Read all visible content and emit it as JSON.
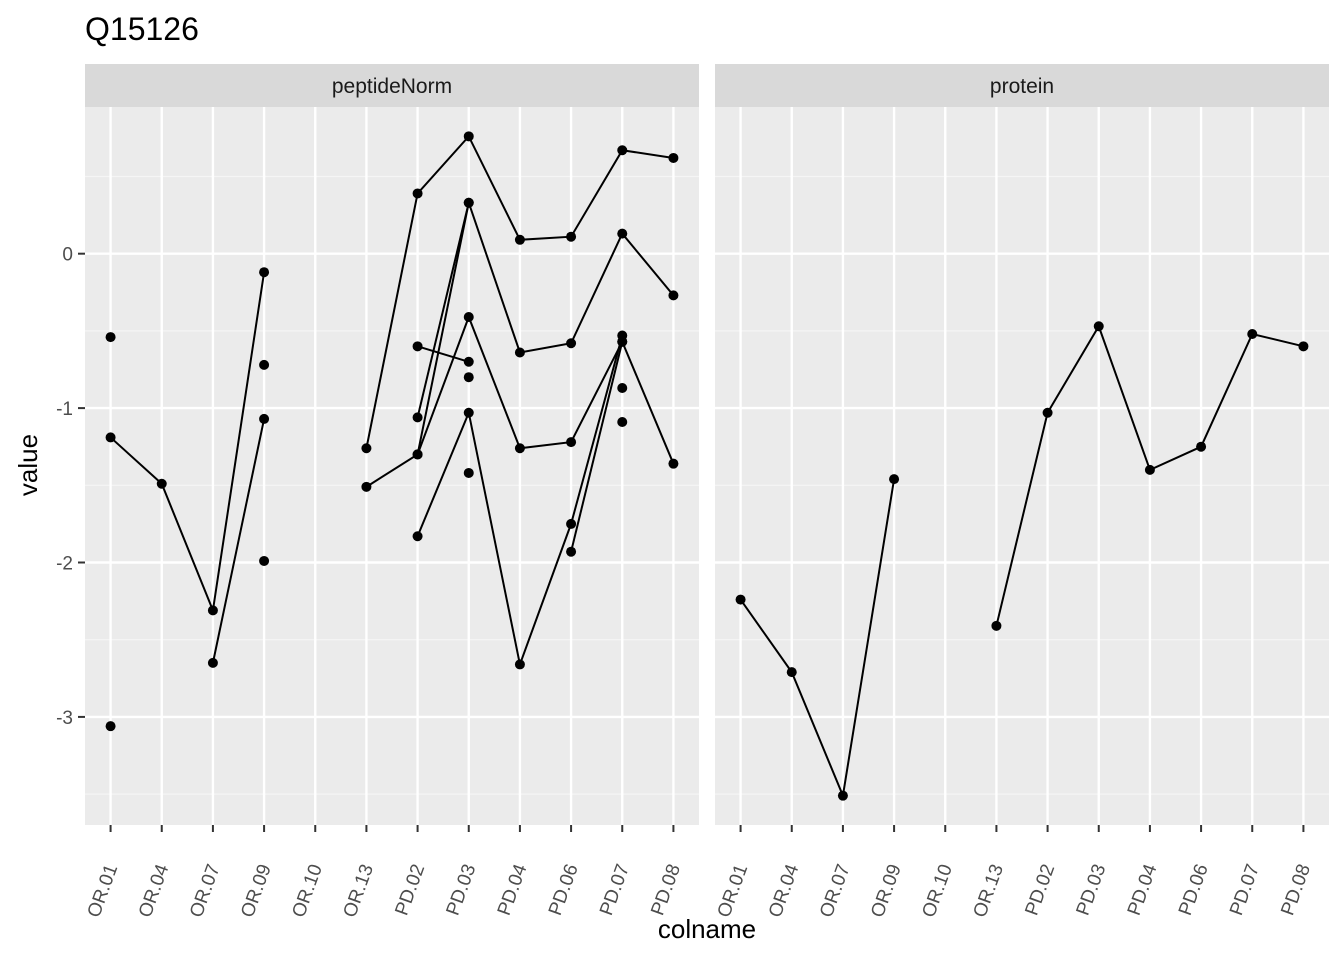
{
  "chart_data": {
    "type": "line",
    "title": "Q15126",
    "xlabel": "colname",
    "ylabel": "value",
    "ylim": [
      -3.7,
      0.95
    ],
    "yticks": [
      0,
      -1,
      -2,
      -3
    ],
    "categories": [
      "OR.01",
      "OR.04",
      "OR.07",
      "OR.09",
      "OR.10",
      "OR.13",
      "PD.02",
      "PD.03",
      "PD.04",
      "PD.06",
      "PD.07",
      "PD.08"
    ],
    "grid": true,
    "panels": [
      {
        "name": "peptideNorm",
        "series": [
          {
            "values": [
              null,
              null,
              null,
              null,
              null,
              -1.26,
              0.39,
              0.76,
              0.09,
              0.11,
              0.67,
              0.62
            ]
          },
          {
            "values": [
              null,
              null,
              null,
              null,
              null,
              null,
              -1.3,
              0.33,
              -0.64,
              -0.58,
              0.13,
              -0.27
            ]
          },
          {
            "values": [
              null,
              null,
              null,
              null,
              null,
              -1.51,
              -1.3,
              -0.41,
              -1.26,
              -1.22,
              -0.57,
              -1.36
            ]
          },
          {
            "values": [
              null,
              null,
              null,
              null,
              null,
              null,
              -1.83,
              -1.03,
              -2.66,
              -1.75,
              -0.53,
              null
            ]
          },
          {
            "values": [
              null,
              null,
              null,
              null,
              null,
              null,
              -1.06,
              0.33,
              null,
              null,
              null,
              null
            ]
          },
          {
            "values": [
              null,
              null,
              null,
              null,
              null,
              null,
              -0.6,
              -0.7,
              null,
              null,
              null,
              null
            ]
          },
          {
            "values": [
              null,
              null,
              null,
              null,
              null,
              null,
              null,
              null,
              null,
              -1.93,
              -0.57,
              null
            ]
          },
          {
            "values": [
              -1.19,
              -1.49,
              -2.31,
              -0.12,
              null,
              null,
              null,
              null,
              null,
              null,
              null,
              null
            ]
          },
          {
            "values": [
              null,
              null,
              -2.65,
              -1.07,
              null,
              null,
              null,
              null,
              null,
              null,
              null,
              null
            ]
          }
        ],
        "extra_points": [
          {
            "x": "OR.01",
            "y": -0.54
          },
          {
            "x": "OR.01",
            "y": -3.06
          },
          {
            "x": "OR.09",
            "y": -0.72
          },
          {
            "x": "OR.09",
            "y": -1.99
          },
          {
            "x": "PD.03",
            "y": -0.8
          },
          {
            "x": "PD.03",
            "y": -1.42
          },
          {
            "x": "PD.07",
            "y": -0.87
          },
          {
            "x": "PD.07",
            "y": -1.09
          }
        ]
      },
      {
        "name": "protein",
        "series": [
          {
            "values": [
              -2.24,
              -2.71,
              -3.51,
              -1.46,
              null,
              null,
              null,
              null,
              null,
              null,
              null,
              null
            ]
          },
          {
            "values": [
              null,
              null,
              null,
              null,
              null,
              -2.41,
              -1.03,
              -0.47,
              -1.4,
              -1.25,
              -0.52,
              -0.6
            ]
          }
        ],
        "extra_points": []
      }
    ]
  }
}
